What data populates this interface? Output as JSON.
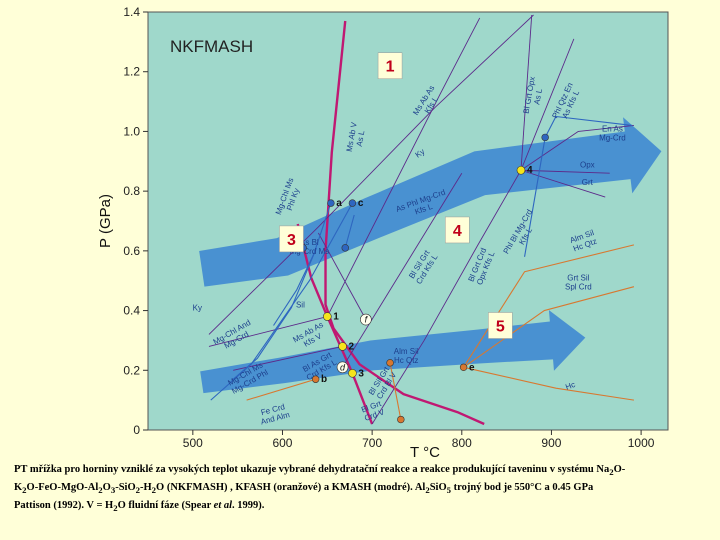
{
  "chart_data": {
    "type": "phase-diagram",
    "title": "NKFMASH",
    "xlabel": "T °C",
    "ylabel": "P (GPa)",
    "xlim": [
      450,
      1030
    ],
    "ylim": [
      0,
      1.4
    ],
    "xticks": [
      500,
      600,
      700,
      800,
      900,
      1000
    ],
    "yticks": [
      0,
      0.2,
      0.4,
      0.6,
      0.8,
      1.0,
      1.2,
      1.4
    ],
    "xtick_labels": [
      "500",
      "600",
      "700",
      "800",
      "900",
      "1000"
    ],
    "ytick_labels": [
      "0",
      "0.2",
      "0.4",
      "0.6",
      "0.8",
      "1.0",
      "1.2",
      "1.4"
    ],
    "colors": {
      "background": "#9fd8cb",
      "nkfmash": "#c01872",
      "kfash": "#d87830",
      "kmash": "#2e66c0",
      "generic": "#5c2a8a",
      "arrow": "#3d86d2",
      "invariant_point": "#f5e51c",
      "label_box": "#ffffd8",
      "label_text": "#c0001a",
      "tick_text": "#222222"
    },
    "field_labels": [
      {
        "text": "1",
        "x": 720,
        "y": 1.22
      },
      {
        "text": "3",
        "x": 610,
        "y": 0.64
      },
      {
        "text": "4",
        "x": 795,
        "y": 0.67
      },
      {
        "text": "5",
        "x": 843,
        "y": 0.35
      }
    ],
    "invariant_points": [
      {
        "label": "1",
        "x": 650,
        "y": 0.38
      },
      {
        "label": "2",
        "x": 667,
        "y": 0.28
      },
      {
        "label": "3",
        "x": 678,
        "y": 0.19
      },
      {
        "label": "4",
        "x": 866,
        "y": 0.87
      }
    ],
    "kfash_points": [
      {
        "label": "Alm Sil Hc Qtz",
        "x": 720,
        "y": 0.225
      },
      {
        "label": "e",
        "x": 802,
        "y": 0.21
      },
      {
        "label": "b",
        "x": 637,
        "y": 0.17
      },
      {
        "label": "",
        "x": 732,
        "y": 0.035
      }
    ],
    "kmash_points": [
      {
        "label": "c",
        "x": 678,
        "y": 0.76
      },
      {
        "label": "a",
        "x": 654,
        "y": 0.76
      },
      {
        "label": "",
        "x": 623,
        "y": 0.61
      },
      {
        "label": "",
        "x": 670,
        "y": 0.61
      },
      {
        "label": "",
        "x": 893,
        "y": 0.98
      }
    ],
    "generic_points": [
      {
        "label": "f",
        "x": 693,
        "y": 0.37
      },
      {
        "label": "d",
        "x": 667,
        "y": 0.21
      }
    ],
    "curves": [
      {
        "id": "nkfmash-boundary",
        "family": "nkfmash",
        "points": [
          [
            670,
            1.37
          ],
          [
            655,
            0.93
          ],
          [
            648,
            0.6
          ],
          [
            648,
            0.42
          ],
          [
            657,
            0.34
          ],
          [
            686,
            0.22
          ],
          [
            735,
            0.12
          ],
          [
            795,
            0.06
          ],
          [
            825,
            0.02
          ]
        ]
      },
      {
        "id": "steep-1",
        "family": "nkfmash",
        "points": [
          [
            617,
            0.69
          ],
          [
            632,
            0.51
          ],
          [
            650,
            0.38
          ]
        ]
      },
      {
        "id": "steep-2",
        "family": "nkfmash",
        "points": [
          [
            650,
            0.38
          ],
          [
            678,
            0.19
          ],
          [
            700,
            0.02
          ]
        ]
      },
      {
        "id": "as-ky-sil",
        "family": "generic",
        "points": [
          [
            518,
            0.32
          ],
          [
            545,
            0.4
          ],
          [
            640,
            0.68
          ],
          [
            770,
            1.08
          ],
          [
            880,
            1.39
          ]
        ]
      },
      {
        "id": "ms-ab-v",
        "family": "generic",
        "points": [
          [
            650,
            0.38
          ],
          [
            775,
            1.12
          ],
          [
            820,
            1.38
          ]
        ]
      },
      {
        "id": "bl-grt-opx",
        "family": "generic",
        "points": [
          [
            866,
            0.87
          ],
          [
            878,
            1.39
          ]
        ]
      },
      {
        "id": "phl-qtz",
        "family": "generic",
        "points": [
          [
            866,
            0.87
          ],
          [
            925,
            1.31
          ]
        ]
      },
      {
        "id": "en-as",
        "family": "generic",
        "points": [
          [
            866,
            0.87
          ],
          [
            930,
            1.0
          ],
          [
            992,
            1.02
          ]
        ]
      },
      {
        "id": "opx-as",
        "family": "generic",
        "points": [
          [
            866,
            0.87
          ],
          [
            965,
            0.86
          ]
        ]
      },
      {
        "id": "grt-crd",
        "family": "generic",
        "points": [
          [
            866,
            0.87
          ],
          [
            960,
            0.78
          ]
        ]
      },
      {
        "id": "steep-4",
        "family": "generic",
        "points": [
          [
            866,
            0.87
          ],
          [
            818,
            0.62
          ],
          [
            758,
            0.3
          ],
          [
            700,
            0.02
          ]
        ]
      },
      {
        "id": "and-sil",
        "family": "generic",
        "points": [
          [
            518,
            0.28
          ],
          [
            650,
            0.38
          ]
        ]
      },
      {
        "id": "chl-phl",
        "family": "generic",
        "points": [
          [
            545,
            0.2
          ],
          [
            667,
            0.28
          ]
        ]
      },
      {
        "id": "f-line",
        "family": "generic",
        "points": [
          [
            693,
            0.37
          ],
          [
            640,
            0.66
          ]
        ]
      },
      {
        "id": "bl-grt-crd-mid",
        "family": "generic",
        "points": [
          [
            667,
            0.21
          ],
          [
            800,
            0.86
          ]
        ]
      },
      {
        "id": "k-asbl",
        "family": "kmash",
        "points": [
          [
            638,
            0.61
          ],
          [
            610,
            0.41
          ],
          [
            572,
            0.24
          ],
          [
            545,
            0.17
          ]
        ]
      },
      {
        "id": "k-a",
        "family": "kmash",
        "points": [
          [
            654,
            0.76
          ],
          [
            635,
            0.59
          ],
          [
            616,
            0.47
          ],
          [
            590,
            0.35
          ]
        ]
      },
      {
        "id": "k-c",
        "family": "kmash",
        "points": [
          [
            678,
            0.76
          ],
          [
            630,
            0.5
          ],
          [
            565,
            0.22
          ],
          [
            520,
            0.1
          ]
        ]
      },
      {
        "id": "k-ms",
        "family": "kmash",
        "points": [
          [
            670,
            0.61
          ],
          [
            680,
            0.72
          ]
        ]
      },
      {
        "id": "k-en-as",
        "family": "kmash",
        "points": [
          [
            893,
            0.98
          ],
          [
            905,
            1.05
          ],
          [
            990,
            1.02
          ]
        ]
      },
      {
        "id": "k-upper",
        "family": "kmash",
        "points": [
          [
            893,
            0.98
          ],
          [
            870,
            0.58
          ]
        ]
      },
      {
        "id": "f-hc",
        "family": "kfash",
        "points": [
          [
            802,
            0.21
          ],
          [
            905,
            0.14
          ],
          [
            992,
            0.1
          ]
        ]
      },
      {
        "id": "f-alm",
        "family": "kfash",
        "points": [
          [
            802,
            0.21
          ],
          [
            870,
            0.53
          ],
          [
            992,
            0.62
          ]
        ]
      },
      {
        "id": "f-grt",
        "family": "kfash",
        "points": [
          [
            802,
            0.21
          ],
          [
            892,
            0.4
          ],
          [
            992,
            0.48
          ]
        ]
      },
      {
        "id": "f-b",
        "family": "kfash",
        "points": [
          [
            637,
            0.17
          ],
          [
            560,
            0.1
          ]
        ]
      },
      {
        "id": "f-low",
        "family": "kfash",
        "points": [
          [
            720,
            0.225
          ],
          [
            732,
            0.035
          ]
        ]
      }
    ],
    "arrows": [
      {
        "id": "arrow-upper",
        "points": [
          [
            510,
            0.54
          ],
          [
            600,
            0.58
          ],
          [
            700,
            0.71
          ],
          [
            820,
            0.86
          ],
          [
            985,
            0.92
          ]
        ],
        "widths": [
          36,
          48
        ]
      },
      {
        "id": "arrow-lower",
        "points": [
          [
            510,
            0.16
          ],
          [
            600,
            0.2
          ],
          [
            700,
            0.25
          ],
          [
            820,
            0.28
          ],
          [
            900,
            0.3
          ]
        ],
        "widths": [
          22,
          38
        ]
      }
    ],
    "annotations": [
      {
        "text": "Bl Grt Opx As L",
        "x": 878,
        "y": 1.12,
        "angle": -80
      },
      {
        "text": "Phl Qtz En As Kfs L",
        "x": 915,
        "y": 1.1,
        "angle": -65
      },
      {
        "text": "En As Mg-Crd",
        "x": 968,
        "y": 1.0,
        "angle": 0
      },
      {
        "text": "Opx As",
        "x": 940,
        "y": 0.88,
        "angle": 0
      },
      {
        "text": "Grt Crd",
        "x": 940,
        "y": 0.82,
        "angle": 0
      },
      {
        "text": "Ms Ab As Kfs L",
        "x": 760,
        "y": 1.1,
        "angle": -58
      },
      {
        "text": "Ky Sil",
        "x": 755,
        "y": 0.92,
        "angle": -35
      },
      {
        "text": "Ms Ab V As L",
        "x": 680,
        "y": 0.98,
        "angle": -80
      },
      {
        "text": "As Phl Mg-Crd Kfs L",
        "x": 755,
        "y": 0.76,
        "angle": -20
      },
      {
        "text": "Phl Bl Mg-Crd Kfs L",
        "x": 865,
        "y": 0.66,
        "angle": -60
      },
      {
        "text": "Mg-Chl Ms Phl Ky",
        "x": 605,
        "y": 0.78,
        "angle": -70
      },
      {
        "text": "As Bl Mg-Crd Ms",
        "x": 630,
        "y": 0.62,
        "angle": 0
      },
      {
        "text": "Bl Sil Grt Crd Kfs L",
        "x": 755,
        "y": 0.55,
        "angle": -58
      },
      {
        "text": "Bl Grt Crd Opx Kfs L",
        "x": 820,
        "y": 0.55,
        "angle": -68
      },
      {
        "text": "Alm Sil Hc Qtz",
        "x": 935,
        "y": 0.64,
        "angle": -20
      },
      {
        "text": "Grt Sil Spl Crd",
        "x": 930,
        "y": 0.5,
        "angle": 0
      },
      {
        "text": "Ky And",
        "x": 505,
        "y": 0.4,
        "angle": 0
      },
      {
        "text": "Sil And",
        "x": 620,
        "y": 0.41,
        "angle": 0
      },
      {
        "text": "Mg-Chl And Mg-Crd",
        "x": 545,
        "y": 0.32,
        "angle": -30
      },
      {
        "text": "Ms Ab As Kfs V",
        "x": 630,
        "y": 0.32,
        "angle": -30
      },
      {
        "text": "Bl As Grt Crd Kfs L",
        "x": 640,
        "y": 0.22,
        "angle": -30
      },
      {
        "text": "Mg-Chl Ms Mg-Crd Phl",
        "x": 560,
        "y": 0.18,
        "angle": -30
      },
      {
        "text": "Alm Sil Hc Qtz",
        "x": 738,
        "y": 0.255,
        "angle": 0
      },
      {
        "text": "Fe Crd And Alm",
        "x": 590,
        "y": 0.06,
        "angle": -15
      },
      {
        "text": "Hc Fe-Crd",
        "x": 922,
        "y": 0.14,
        "angle": -20
      },
      {
        "text": "Bl Grt Crd V",
        "x": 700,
        "y": 0.07,
        "angle": -20
      },
      {
        "text": "Bl Sil Grt Crd Bl V",
        "x": 710,
        "y": 0.16,
        "angle": -58
      }
    ]
  },
  "caption": {
    "line1": "PT mřížka pro horniny vzniklé za vysokých teplot ukazuje vybrané dehydratační reakce a reakce produkující taveninu v systému Na",
    "line1_sub": "2",
    "line1_tail": "O-",
    "line2_a": "K",
    "line2_a_sub": "2",
    "line2_b": "O-FeO-MgO-Al",
    "line2_b_sub": "2",
    "line2_c": "O",
    "line2_c_sub": "3",
    "line2_d": "-SiO",
    "line2_d_sub": "2",
    "line2_e": "-H",
    "line2_e_sub": "2",
    "line2_f": "O (NKFMASH) , KFASH (oranžové) a KMASH (modré).  Al",
    "line2_f_sub": "2",
    "line2_g": "SiO",
    "line2_g_sub": "5",
    "line2_h": " trojný bod je  550°C a 0.45 GPa",
    "line3_a": "Pattison (1992). V = H",
    "line3_a_sub": "2",
    "line3_b": "O fluidní fáze (Spear ",
    "line3_italic": "et al",
    "line3_c": ". 1999)."
  }
}
